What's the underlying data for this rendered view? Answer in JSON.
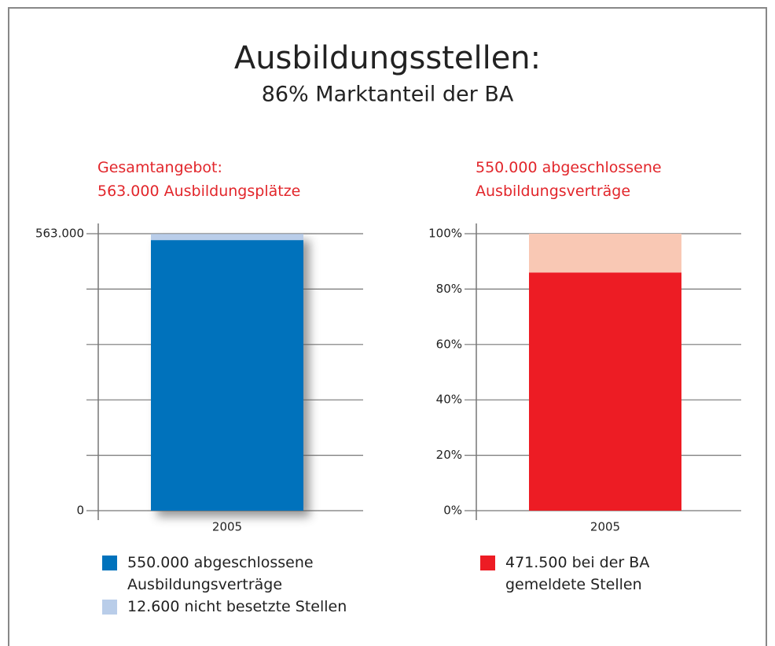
{
  "title": "Ausbildungsstellen:",
  "subtitle": "86% Marktanteil der BA",
  "chart_data": [
    {
      "type": "stacked_bar",
      "title": "Gesamtangebot:\n563.000 Ausbildungsplätze",
      "categories": [
        "2005"
      ],
      "series": [
        {
          "name": "550.000 abgeschlossene\nAusbildungsverträge",
          "color": "#0072bc",
          "values": [
            550000
          ]
        },
        {
          "name": "12.600 nicht besetzte Stellen",
          "color": "#b9cde9",
          "values": [
            12600
          ]
        }
      ],
      "ylim": [
        0,
        563000
      ],
      "yticks": [
        0,
        {
          "value": 563000,
          "label": "563.000"
        }
      ],
      "ygrid": [
        112600,
        225200,
        337800,
        450400
      ],
      "grid": true,
      "shadow": true
    },
    {
      "type": "stacked_bar",
      "title": "550.000 abgeschlossene\nAusbildungsverträge",
      "categories": [
        "2005"
      ],
      "series": [
        {
          "name": "471.500 bei der BA\ngemeldete Stellen",
          "color": "#ed1c24",
          "values": [
            86
          ]
        },
        {
          "color": "#f9c8b4",
          "values": [
            14
          ]
        }
      ],
      "ylim": [
        0,
        100
      ],
      "yticks": [
        {
          "value": 0,
          "label": "0%"
        },
        {
          "value": 20,
          "label": "20%"
        },
        {
          "value": 40,
          "label": "40%"
        },
        {
          "value": 60,
          "label": "60%"
        },
        {
          "value": 80,
          "label": "80%"
        },
        {
          "value": 100,
          "label": "100%"
        }
      ],
      "grid": true,
      "shadow": false
    }
  ]
}
